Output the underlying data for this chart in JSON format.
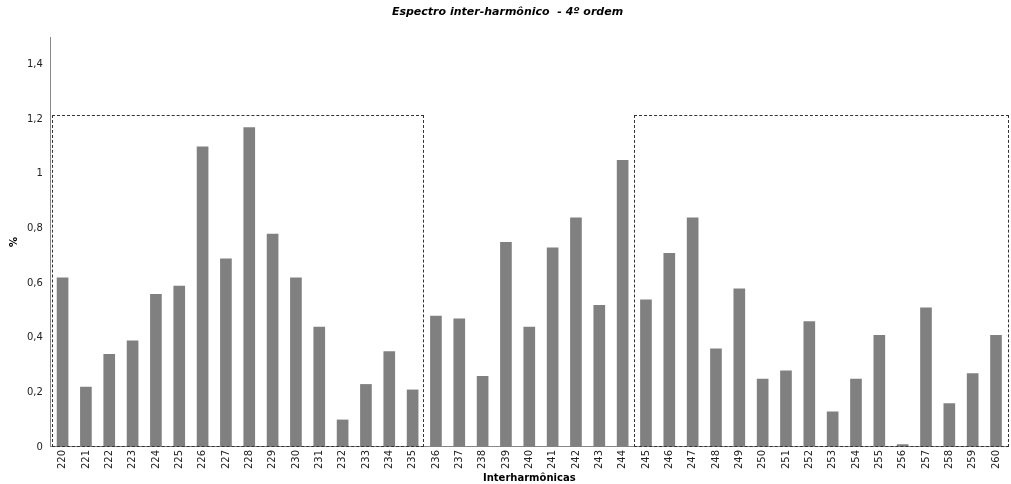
{
  "chart_data": {
    "type": "bar",
    "title": "Espectro inter-harmônico  - 4º ordem",
    "xlabel": "Interharmônicas",
    "ylabel": "%",
    "categories": [
      "220",
      "221",
      "222",
      "223",
      "224",
      "225",
      "226",
      "227",
      "228",
      "229",
      "230",
      "231",
      "232",
      "233",
      "234",
      "235",
      "236",
      "237",
      "238",
      "239",
      "240",
      "241",
      "242",
      "243",
      "244",
      "245",
      "246",
      "247",
      "248",
      "249",
      "250",
      "251",
      "252",
      "253",
      "254",
      "255",
      "256",
      "257",
      "258",
      "259",
      "260"
    ],
    "values": [
      0.62,
      0.22,
      0.34,
      0.39,
      0.56,
      0.59,
      1.1,
      0.69,
      1.17,
      0.78,
      0.62,
      0.44,
      0.1,
      0.23,
      0.35,
      0.21,
      0.48,
      0.47,
      0.26,
      0.75,
      0.44,
      0.73,
      0.84,
      0.52,
      1.05,
      0.54,
      0.71,
      0.84,
      0.36,
      0.58,
      0.25,
      0.28,
      0.46,
      0.13,
      0.25,
      0.41,
      0.01,
      0.51,
      0.16,
      0.27,
      0.41
    ],
    "color": "#808080",
    "ylim": [
      0,
      1.5
    ],
    "yticks": [
      0,
      {
        "value": 0.2,
        "label": "0,2"
      },
      {
        "value": 0.4,
        "label": "0,4"
      },
      {
        "value": 0.6,
        "label": "0,6"
      },
      {
        "value": 0.8,
        "label": "0,8"
      },
      1,
      {
        "value": 1.2,
        "label": "1,2"
      },
      {
        "value": 1.4,
        "label": "1,4"
      }
    ],
    "grid": false,
    "legend": false
  }
}
